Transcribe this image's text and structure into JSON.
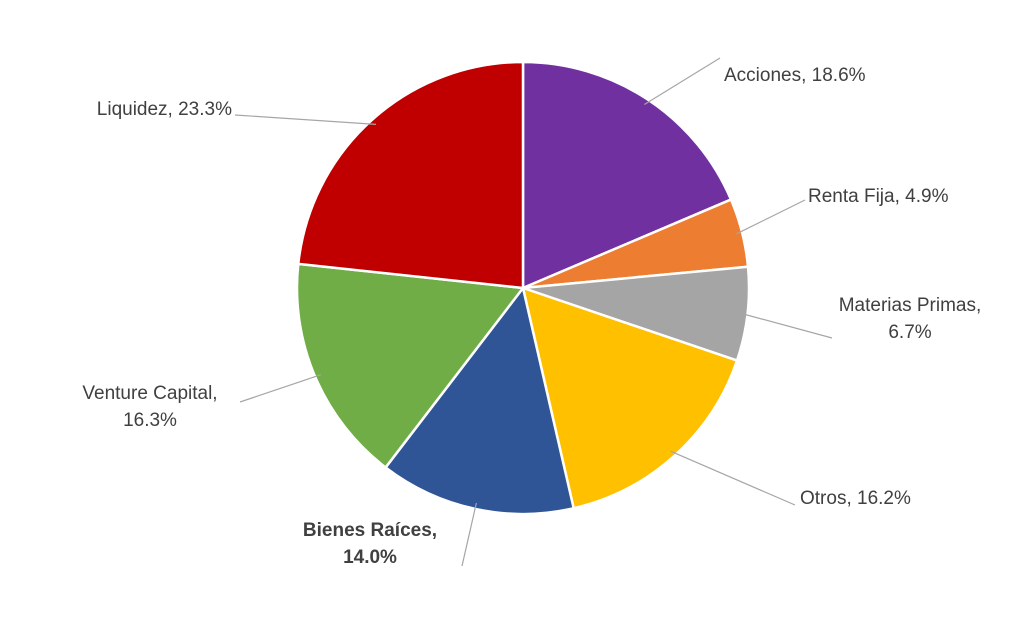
{
  "chart_data": {
    "type": "pie",
    "values": [
      18.6,
      4.9,
      6.7,
      16.2,
      14.0,
      16.3,
      23.3
    ],
    "value_labels": [
      "Acciones, 18.6%",
      "Renta Fija, 4.9%",
      "Materias Primas, 6.7%",
      "Otros, 16.2%",
      "Bienes Raíces, 14.0%",
      "Venture Capital, 16.3%",
      "Liquidez, 23.3%"
    ],
    "colors": [
      "#7030a0",
      "#ed7d31",
      "#a5a5a5",
      "#ffc000",
      "#2f5597",
      "#70ad47",
      "#c00000"
    ],
    "bold_labels": [
      false,
      false,
      false,
      false,
      true,
      false,
      false
    ]
  }
}
